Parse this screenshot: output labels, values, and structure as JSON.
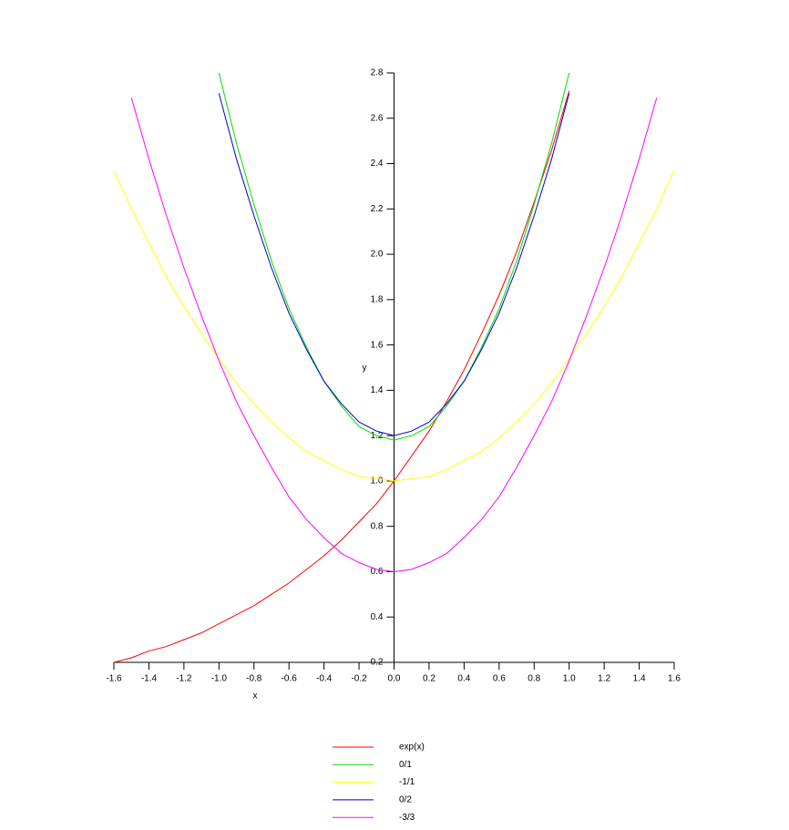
{
  "chart_data": {
    "type": "line",
    "x": [
      -1.6,
      -1.5,
      -1.4,
      -1.3,
      -1.2,
      -1.1,
      -1.0,
      -0.9,
      -0.8,
      -0.7,
      -0.6,
      -0.5,
      -0.4,
      -0.3,
      -0.2,
      -0.1,
      0,
      0.1,
      0.2,
      0.3,
      0.4,
      0.5,
      0.6,
      0.7,
      0.8,
      0.9,
      1.0,
      1.1,
      1.2,
      1.3,
      1.4,
      1.5,
      1.6
    ],
    "series": [
      {
        "name": "exp(x)",
        "color": "#ff0000",
        "values": [
          0.2,
          0.22,
          0.25,
          0.27,
          0.3,
          0.33,
          0.37,
          0.41,
          0.45,
          0.5,
          0.55,
          0.61,
          0.67,
          0.74,
          0.82,
          0.9,
          1.0,
          1.11,
          1.22,
          1.35,
          1.49,
          1.65,
          1.82,
          2.01,
          2.23,
          2.46,
          2.72,
          null,
          null,
          null,
          null,
          null,
          null
        ]
      },
      {
        "name": "0/1",
        "color": "#00dd00",
        "values": [
          null,
          null,
          null,
          null,
          null,
          null,
          2.8,
          2.49,
          2.22,
          1.97,
          1.76,
          1.59,
          1.44,
          1.33,
          1.24,
          1.2,
          1.18,
          1.2,
          1.24,
          1.33,
          1.44,
          1.59,
          1.76,
          1.97,
          2.22,
          2.49,
          2.8,
          null,
          null,
          null,
          null,
          null,
          null
        ]
      },
      {
        "name": "-1/1",
        "color": "#ffff00",
        "values": [
          2.37,
          2.2,
          2.05,
          1.9,
          1.77,
          1.65,
          1.54,
          1.43,
          1.34,
          1.26,
          1.19,
          1.13,
          1.09,
          1.05,
          1.02,
          1.01,
          1.0,
          1.01,
          1.02,
          1.05,
          1.09,
          1.13,
          1.19,
          1.26,
          1.34,
          1.43,
          1.54,
          1.65,
          1.77,
          1.9,
          2.05,
          2.2,
          2.37
        ]
      },
      {
        "name": "0/2",
        "color": "#0000cc",
        "values": [
          null,
          null,
          null,
          null,
          null,
          null,
          2.71,
          2.42,
          2.17,
          1.94,
          1.74,
          1.58,
          1.44,
          1.34,
          1.26,
          1.22,
          1.2,
          1.22,
          1.26,
          1.34,
          1.44,
          1.58,
          1.74,
          1.94,
          2.17,
          2.42,
          2.71,
          null,
          null,
          null,
          null,
          null,
          null
        ]
      },
      {
        "name": "-3/3",
        "color": "#ff00ff",
        "values": [
          null,
          2.69,
          2.42,
          2.17,
          1.94,
          1.73,
          1.53,
          1.35,
          1.2,
          1.06,
          0.93,
          0.83,
          0.75,
          0.68,
          0.64,
          0.61,
          0.6,
          0.61,
          0.64,
          0.68,
          0.75,
          0.83,
          0.93,
          1.06,
          1.2,
          1.35,
          1.53,
          1.73,
          1.94,
          2.17,
          2.42,
          2.69,
          null
        ]
      }
    ],
    "xlabel": "x",
    "ylabel": "y",
    "xlim": [
      -1.6,
      1.6
    ],
    "xticks": [
      -1.6,
      -1.4,
      -1.2,
      {
        "value": -1.0,
        "label": "-1.0"
      },
      -0.8,
      -0.6,
      -0.4,
      -0.2,
      {
        "value": 0,
        "label": "0.0"
      },
      0.2,
      0.4,
      0.6,
      0.8,
      {
        "value": 1.0,
        "label": "1.0"
      },
      1.2,
      1.4,
      1.6
    ],
    "ylim": [
      0.2,
      2.8
    ],
    "yticks": [
      0.2,
      0.4,
      0.6,
      0.8,
      {
        "value": 1.0,
        "label": "1.0"
      },
      1.2,
      1.4,
      1.6,
      1.8,
      {
        "value": 2.0,
        "label": "2.0"
      },
      2.2,
      2.4,
      2.6,
      2.8
    ],
    "legend": "bottom"
  }
}
